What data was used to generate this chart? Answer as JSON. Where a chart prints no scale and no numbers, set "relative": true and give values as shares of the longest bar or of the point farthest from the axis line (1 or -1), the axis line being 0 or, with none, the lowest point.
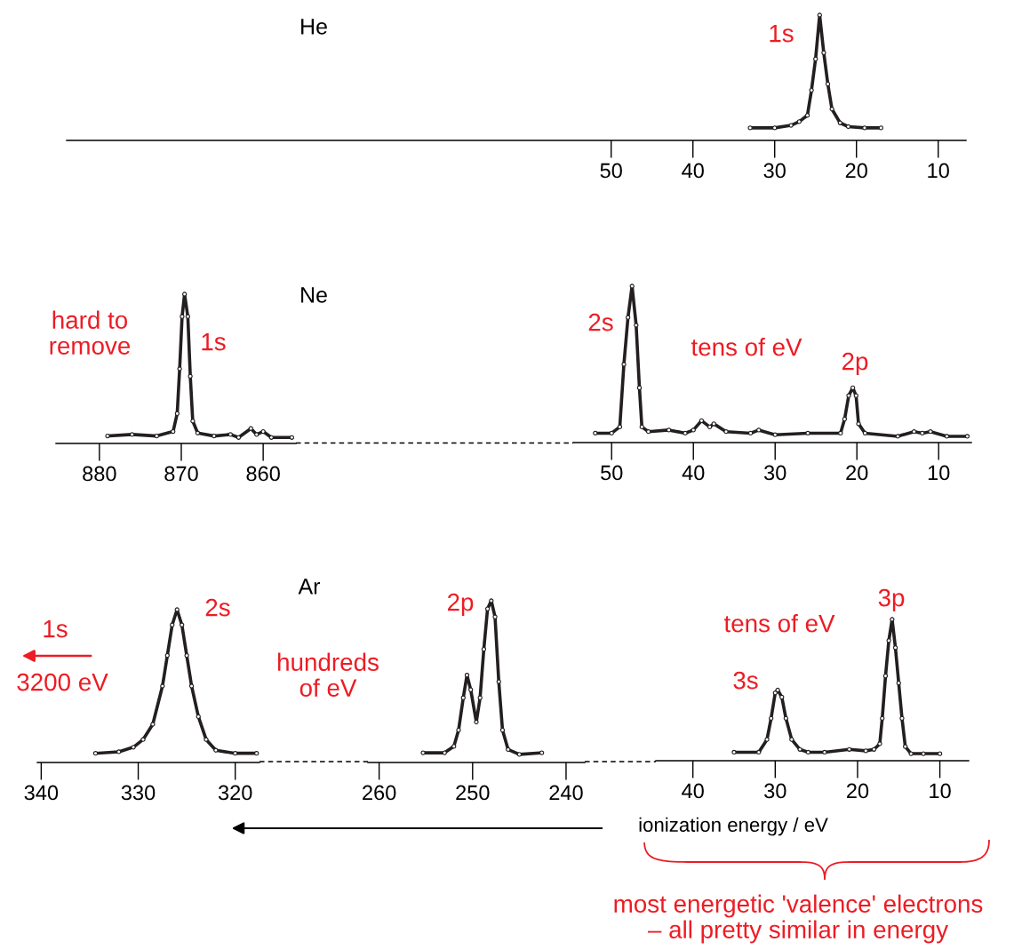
{
  "chart_data": [
    {
      "type": "line",
      "relative": true,
      "title": "He",
      "color": "#231f20",
      "marker": "circle",
      "xlim": [
        116.6,
        6.6
      ],
      "xticks": [
        50,
        40,
        30,
        20,
        10
      ],
      "x": [
        33,
        30,
        28,
        27,
        26,
        25.5,
        25,
        24.5,
        24,
        23.5,
        23,
        22,
        21,
        19,
        17
      ],
      "values": [
        0.1,
        0.1,
        0.12,
        0.15,
        0.2,
        0.4,
        0.65,
        1.0,
        0.7,
        0.45,
        0.25,
        0.14,
        0.11,
        0.1,
        0.1
      ],
      "annotations": [
        "1s"
      ]
    },
    {
      "type": "line",
      "relative": true,
      "color": "#231f20",
      "marker": "circle",
      "xlim": [
        885.3,
        856.0
      ],
      "xticks": [
        880,
        870,
        860
      ],
      "x": [
        879,
        876,
        873,
        871,
        870.5,
        870.2,
        869.9,
        869.6,
        869.2,
        868.9,
        868.6,
        868,
        866,
        864,
        863,
        861.5,
        860.8,
        860,
        859,
        856.5
      ],
      "values": [
        0.05,
        0.06,
        0.05,
        0.08,
        0.2,
        0.5,
        0.85,
        1.0,
        0.85,
        0.45,
        0.15,
        0.07,
        0.05,
        0.06,
        0.04,
        0.1,
        0.06,
        0.08,
        0.04,
        0.04
      ],
      "annotations": [
        "Ne",
        "hard to\nremove",
        "1s"
      ]
    },
    {
      "type": "line",
      "relative": true,
      "color": "#231f20",
      "marker": "circle",
      "xlim": [
        54.7,
        6.0
      ],
      "xticks": [
        50,
        40,
        30,
        20,
        10
      ],
      "x": [
        52,
        50,
        49,
        48.5,
        48,
        47.5,
        47,
        46.6,
        46.3,
        45.5,
        43,
        41,
        40,
        39,
        38,
        37.5,
        36,
        33,
        32,
        30,
        26,
        22,
        21.5,
        21,
        20.5,
        20.1,
        19.8,
        19,
        15,
        13,
        12,
        11,
        9,
        6.5
      ],
      "values": [
        0.06,
        0.06,
        0.1,
        0.5,
        0.8,
        1.0,
        0.75,
        0.35,
        0.1,
        0.07,
        0.08,
        0.06,
        0.08,
        0.14,
        0.1,
        0.12,
        0.07,
        0.06,
        0.08,
        0.05,
        0.06,
        0.06,
        0.15,
        0.3,
        0.35,
        0.3,
        0.12,
        0.06,
        0.04,
        0.07,
        0.06,
        0.07,
        0.04,
        0.04
      ],
      "annotations": [
        "2s",
        "tens of eV",
        "2p"
      ]
    },
    {
      "type": "line",
      "relative": true,
      "color": "#231f20",
      "marker": "circle",
      "xlim": [
        340.4,
        317.5
      ],
      "xticks": [
        340,
        330,
        320
      ],
      "x": [
        334.4,
        332,
        330.5,
        329.5,
        328.5,
        327.5,
        327,
        326.5,
        326,
        325.5,
        325,
        324.5,
        323.8,
        323,
        322,
        320,
        317.8
      ],
      "values": [
        0.06,
        0.07,
        0.1,
        0.15,
        0.25,
        0.5,
        0.7,
        0.9,
        1.0,
        0.9,
        0.7,
        0.5,
        0.3,
        0.15,
        0.08,
        0.06,
        0.06
      ],
      "annotations": [
        "Ar",
        "1s",
        "3200 eV",
        "2s",
        "hundreds\nof eV"
      ]
    },
    {
      "type": "line",
      "relative": true,
      "color": "#231f20",
      "marker": "circle",
      "xlim": [
        261.2,
        238.0
      ],
      "xticks": [
        260,
        250,
        240
      ],
      "x": [
        255.3,
        253,
        252,
        251.5,
        251,
        250.6,
        250.2,
        249.6,
        249.2,
        248.8,
        248.4,
        248,
        247.6,
        247.2,
        246.8,
        246.2,
        245,
        242.6
      ],
      "values": [
        0.06,
        0.06,
        0.1,
        0.2,
        0.4,
        0.54,
        0.45,
        0.25,
        0.4,
        0.7,
        0.95,
        1.0,
        0.9,
        0.5,
        0.2,
        0.08,
        0.05,
        0.06
      ],
      "annotations": [
        "2p"
      ]
    },
    {
      "type": "line",
      "relative": true,
      "color": "#231f20",
      "marker": "circle",
      "xlim": [
        44.5,
        6.5
      ],
      "xticks": [
        40,
        30,
        20,
        10
      ],
      "xlabel": "ionization energy / eV",
      "x": [
        35,
        32,
        31,
        30.5,
        30,
        29.7,
        29.2,
        28.7,
        28,
        27,
        26,
        24,
        21,
        19,
        18,
        17.3,
        17,
        16.6,
        16.2,
        15.8,
        15.4,
        15,
        14.6,
        14.2,
        13.5,
        12,
        10
      ],
      "values": [
        0.06,
        0.06,
        0.15,
        0.3,
        0.48,
        0.5,
        0.45,
        0.3,
        0.15,
        0.08,
        0.06,
        0.06,
        0.08,
        0.07,
        0.08,
        0.12,
        0.3,
        0.6,
        0.85,
        1.0,
        0.8,
        0.55,
        0.3,
        0.1,
        0.05,
        0.05,
        0.05
      ],
      "annotations": [
        "tens of eV",
        "3s",
        "3p",
        "most energetic 'valence' electrons\n– all pretty similar in energy"
      ]
    }
  ]
}
